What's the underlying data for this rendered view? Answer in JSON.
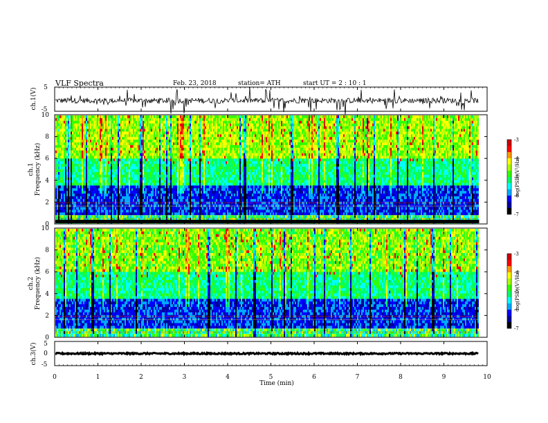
{
  "header": {
    "title": "VLF  Spectra",
    "date": "Feb. 23, 2018",
    "station": "station= ATH",
    "start": "start  UT  =   2  : 10 : 1"
  },
  "chart_data": [
    {
      "type": "line",
      "panel": "ch1-waveform",
      "ylabel": "ch.1(V)",
      "ylim": [
        -5,
        5
      ],
      "yticks": [
        "5",
        "-5"
      ],
      "xlim": [
        0,
        10
      ],
      "baseline": 0,
      "amplitude_typical": 1,
      "color": "#000000"
    },
    {
      "type": "heatmap",
      "panel": "ch1-spectrogram",
      "ylabel_1": "ch.1",
      "ylabel_2": "Frequency  (kHz)",
      "ylim": [
        0,
        10
      ],
      "yticks": [
        "0",
        "2",
        "4",
        "6",
        "8",
        "10"
      ],
      "xlim": [
        0,
        9.8
      ],
      "colorbar": {
        "label": "log(PSD)(V²/Hz)",
        "range": [
          -7,
          -3
        ],
        "ticks": [
          "-3",
          "-4",
          "-5",
          "-6",
          "-7"
        ]
      }
    },
    {
      "type": "heatmap",
      "panel": "ch2-spectrogram",
      "ylabel_1": "ch.2",
      "ylabel_2": "Frequency  (kHz)",
      "ylim": [
        0,
        10
      ],
      "yticks": [
        "0",
        "2",
        "4",
        "6",
        "8",
        "10"
      ],
      "xlim": [
        0,
        9.8
      ],
      "colorbar": {
        "label": "log(PSD)(V²/Hz)",
        "range": [
          -7,
          -3
        ],
        "ticks": [
          "-3",
          "-4",
          "-5",
          "-6",
          "-7"
        ]
      }
    },
    {
      "type": "line",
      "panel": "ch3-waveform",
      "ylabel": "ch.3(V)",
      "ylim": [
        -5,
        5
      ],
      "yticks": [
        "5",
        "0",
        "-5"
      ],
      "xlim": [
        0,
        10
      ],
      "baseline": 0,
      "amplitude_typical": 0.3,
      "color": "#000000"
    }
  ],
  "xaxis": {
    "label": "Time  (min)",
    "ticks": [
      "0",
      "1",
      "2",
      "3",
      "4",
      "5",
      "6",
      "7",
      "8",
      "9",
      "10"
    ]
  },
  "colors": {
    "colormap": [
      "#000000",
      "#00009a",
      "#0000ff",
      "#00aaff",
      "#00ffff",
      "#00ff66",
      "#33ff00",
      "#aaff00",
      "#ffff00",
      "#ff9900",
      "#ff0000",
      "#cc0000",
      "#ffffff"
    ]
  }
}
